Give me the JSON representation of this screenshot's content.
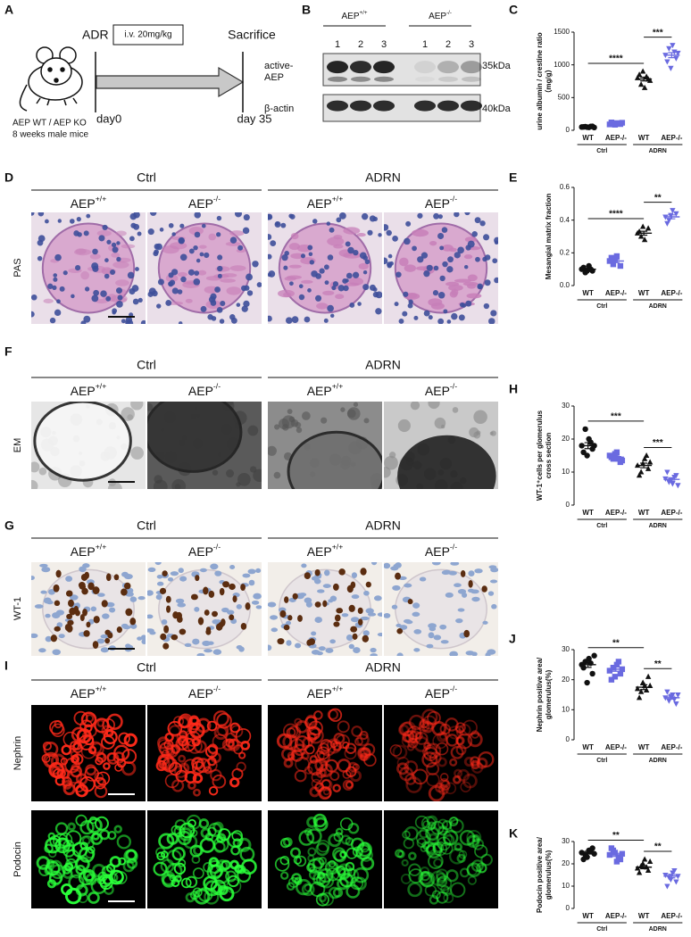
{
  "figure": {
    "A": {
      "letter": "A",
      "treatment": "ADR",
      "dose": "i.v. 20mg/kg",
      "endpoint": "Sacrifice",
      "start": "day0",
      "end": "day 35",
      "mice": [
        "AEP WT / AEP KO",
        "8 weeks male mice"
      ]
    },
    "B": {
      "letter": "B",
      "lanes": [
        "1",
        "2",
        "3"
      ],
      "bands": [
        {
          "label": [
            "active-",
            "AEP"
          ],
          "size": "35kDa"
        },
        {
          "label": [
            "β-actin"
          ],
          "size": "40kDa"
        }
      ]
    },
    "genotypes": [
      {
        "name": "AEP",
        "sup": "+/+"
      },
      {
        "name": "AEP",
        "sup": "-/-"
      }
    ],
    "conditions": [
      "Ctrl",
      "ADRN"
    ],
    "D": {
      "letter": "D",
      "stain": "PAS"
    },
    "F": {
      "letter": "F",
      "stain": "EM"
    },
    "G": {
      "letter": "G",
      "stain": "WT-1"
    },
    "I": {
      "letter": "I",
      "stains": [
        "Nephrin",
        "Podocin"
      ]
    }
  },
  "chart_data": [
    {
      "type": "dot",
      "panel": "C",
      "ylabel": [
        "urine albumin / crestine ratio",
        "（mg/g）"
      ],
      "categories": [
        "WT",
        "AEP-/-",
        "WT",
        "AEP-/-"
      ],
      "groups": [
        "Ctrl",
        "ADRN"
      ],
      "colors": [
        "#111111",
        "#6a6ae0",
        "#111111",
        "#6a6ae0"
      ],
      "markers": [
        "circle",
        "square",
        "triangle",
        "triangle-down"
      ],
      "points": [
        [
          50,
          55,
          45,
          60,
          52,
          48,
          58,
          42
        ],
        [
          90,
          100,
          110,
          95,
          120,
          85,
          105,
          115
        ],
        [
          800,
          700,
          650,
          780,
          850,
          900,
          820,
          760
        ],
        [
          1150,
          1250,
          1300,
          1100,
          1050,
          950,
          1200,
          1180
        ]
      ],
      "means": [
        51,
        103,
        783,
        1148
      ],
      "errors": [
        2,
        4,
        28,
        38
      ],
      "ylim": [
        0,
        1500
      ],
      "yticks": [
        0,
        500,
        1000,
        1500
      ],
      "annotations": [
        {
          "label": "****",
          "between": [
            0,
            2
          ]
        },
        {
          "label": "***",
          "between": [
            2,
            3
          ]
        }
      ]
    },
    {
      "type": "dot",
      "panel": "E",
      "ylabel": [
        "Mesangial matrix fraction"
      ],
      "categories": [
        "WT",
        "AEP-/-",
        "WT",
        "AEP-/-"
      ],
      "groups": [
        "Ctrl",
        "ADRN"
      ],
      "colors": [
        "#111111",
        "#6a6ae0",
        "#111111",
        "#6a6ae0"
      ],
      "markers": [
        "circle",
        "square",
        "triangle",
        "triangle-down"
      ],
      "points": [
        [
          0.1,
          0.08,
          0.12,
          0.09,
          0.11,
          0.09,
          0.1
        ],
        [
          0.15,
          0.13,
          0.18,
          0.12,
          0.17,
          0.16
        ],
        [
          0.32,
          0.3,
          0.28,
          0.35,
          0.33,
          0.36
        ],
        [
          0.42,
          0.4,
          0.46,
          0.44,
          0.38,
          0.43
        ]
      ],
      "means": [
        0.1,
        0.15,
        0.32,
        0.42
      ],
      "errors": [
        0.005,
        0.01,
        0.012,
        0.012
      ],
      "ylim": [
        0,
        0.6
      ],
      "yticks": [
        {
          "value": 0,
          "label": "0.0"
        },
        0.2,
        0.4,
        0.6
      ],
      "annotations": [
        {
          "label": "****",
          "between": [
            0,
            2
          ]
        },
        {
          "label": "**",
          "between": [
            2,
            3
          ]
        }
      ]
    },
    {
      "type": "dot",
      "panel": "H",
      "ylabel": [
        "WT-1⁺cells per glomerulus",
        "cross section"
      ],
      "categories": [
        "WT",
        "AEP-/-",
        "WT",
        "AEP-/-"
      ],
      "groups": [
        "Ctrl",
        "ADRN"
      ],
      "colors": [
        "#111111",
        "#6a6ae0",
        "#111111",
        "#6a6ae0"
      ],
      "markers": [
        "circle",
        "square",
        "triangle",
        "triangle-down"
      ],
      "points": [
        [
          18,
          23,
          20,
          17,
          16,
          15,
          19,
          18
        ],
        [
          15,
          14,
          16,
          13,
          14.5,
          15.5,
          14,
          13.5
        ],
        [
          12,
          10,
          14,
          11,
          9,
          12.5,
          15,
          13
        ],
        [
          8,
          7,
          6.5,
          9,
          10,
          7.5,
          8.5,
          6
        ]
      ],
      "means": [
        18,
        14.5,
        12,
        7.8
      ],
      "errors": [
        0.9,
        0.4,
        0.7,
        0.5
      ],
      "ylim": [
        0,
        30
      ],
      "yticks": [
        0,
        10,
        20,
        30
      ],
      "annotations": [
        {
          "label": "***",
          "between": [
            0,
            2
          ]
        },
        {
          "label": "***",
          "between": [
            2,
            3
          ]
        }
      ]
    },
    {
      "type": "dot",
      "panel": "J",
      "ylabel": [
        "Nephrin positive area/",
        "glomerulus(%)"
      ],
      "categories": [
        "WT",
        "AEP-/-",
        "WT",
        "AEP-/-"
      ],
      "groups": [
        "Ctrl",
        "ADRN"
      ],
      "colors": [
        "#111111",
        "#6a6ae0",
        "#111111",
        "#6a6ae0"
      ],
      "markers": [
        "circle",
        "square",
        "triangle",
        "triangle-down"
      ],
      "points": [
        [
          25,
          26,
          27,
          22,
          24,
          19,
          25.5,
          28
        ],
        [
          23,
          24,
          25,
          22,
          20,
          21,
          26,
          23.5
        ],
        [
          17,
          16,
          18,
          21,
          14,
          19,
          16.5,
          18
        ],
        [
          14,
          13,
          15,
          12,
          16,
          14.5,
          13.5,
          15
        ]
      ],
      "means": [
        25,
        23.5,
        17.5,
        14
      ],
      "errors": [
        0.9,
        0.7,
        0.8,
        0.5
      ],
      "ylim": [
        0,
        30
      ],
      "yticks": [
        0,
        10,
        20,
        30
      ],
      "annotations": [
        {
          "label": "**",
          "between": [
            0,
            2
          ]
        },
        {
          "label": "**",
          "between": [
            2,
            3
          ]
        }
      ]
    },
    {
      "type": "dot",
      "panel": "K",
      "ylabel": [
        "Podocin positive area/",
        "glomerulus(%)"
      ],
      "categories": [
        "WT",
        "AEP-/-",
        "WT",
        "AEP-/-"
      ],
      "groups": [
        "Ctrl",
        "ADRN"
      ],
      "colors": [
        "#111111",
        "#6a6ae0",
        "#111111",
        "#6a6ae0"
      ],
      "markers": [
        "circle",
        "square",
        "triangle",
        "triangle-down"
      ],
      "points": [
        [
          25,
          24,
          26,
          27,
          22,
          23,
          25.5,
          24.5
        ],
        [
          24,
          26,
          21,
          22,
          27,
          25,
          23,
          24.5
        ],
        [
          18,
          19,
          22,
          17,
          16,
          20,
          18.5,
          21
        ],
        [
          15,
          14,
          16,
          12,
          10,
          13,
          17,
          14.5
        ]
      ],
      "means": [
        25,
        24,
        18.5,
        14.5
      ],
      "errors": [
        0.6,
        0.7,
        0.7,
        0.8
      ],
      "ylim": [
        0,
        30
      ],
      "yticks": [
        0,
        10,
        20,
        30
      ],
      "annotations": [
        {
          "label": "**",
          "between": [
            0,
            2
          ]
        },
        {
          "label": "**",
          "between": [
            2,
            3
          ]
        }
      ]
    }
  ]
}
